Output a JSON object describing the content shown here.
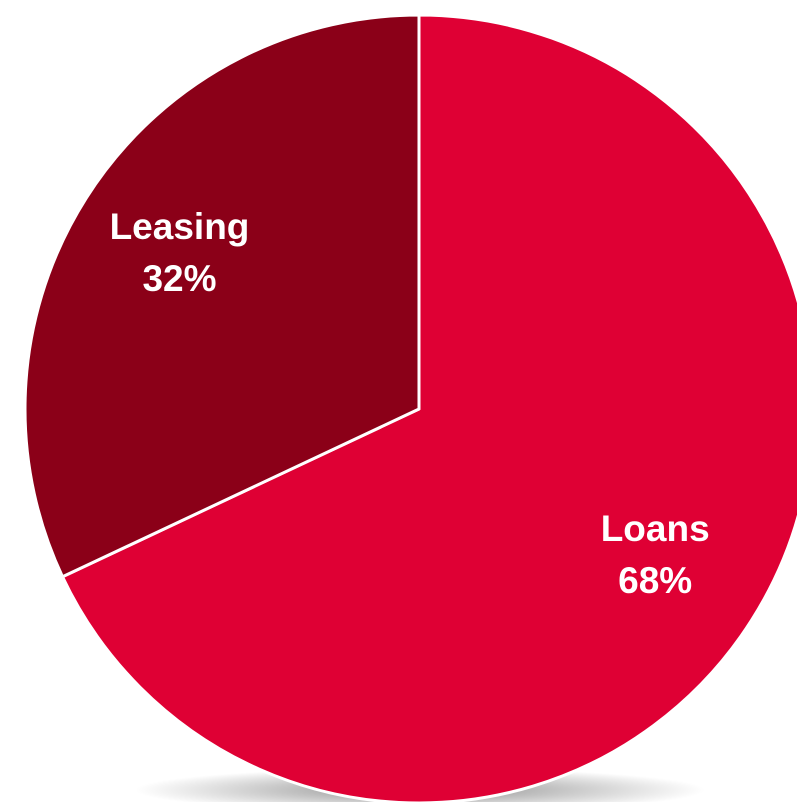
{
  "chart_data": {
    "type": "pie",
    "title": "",
    "categories": [
      "Loans",
      "Leasing"
    ],
    "values": [
      68,
      32
    ],
    "unit": "%",
    "labels": [
      {
        "name": "Loans",
        "percent": "68%"
      },
      {
        "name": "Leasing",
        "percent": "32%"
      }
    ],
    "colors": [
      "#df0034",
      "#8b0018"
    ],
    "start_at": "12 o'clock",
    "direction": "clockwise",
    "legend": "none",
    "slice_border_color": "#ffffff",
    "shadow": true
  }
}
